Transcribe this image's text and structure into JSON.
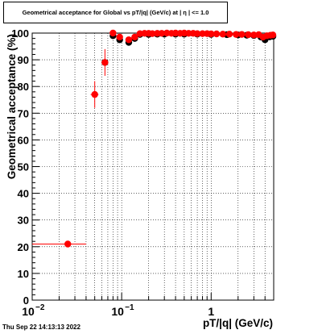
{
  "chart_data": {
    "type": "scatter",
    "title": "Geometrical acceptance for Global vs pT/|q| (GeV/c) at |  η  | <= 1.0",
    "xlabel": "pT/|q| (GeV/c)",
    "ylabel": "Geometrical acceptance (%)",
    "x_scale": "log",
    "xlim": [
      0.01,
      5.0
    ],
    "ylim": [
      0,
      100
    ],
    "grid": true,
    "x_tick_labels": [
      {
        "value": 0.01,
        "base": "10",
        "exp": "−2"
      },
      {
        "value": 0.1,
        "base": "10",
        "exp": "−1"
      },
      {
        "value": 1,
        "base": "1",
        "exp": ""
      }
    ],
    "y_tick_labels": [
      "0",
      "10",
      "20",
      "30",
      "40",
      "50",
      "60",
      "70",
      "80",
      "90",
      "100"
    ],
    "series": [
      {
        "color": "#000000",
        "points": [
          {
            "x": 0.065,
            "y": 89
          },
          {
            "x": 0.08,
            "y": 99
          },
          {
            "x": 0.095,
            "y": 97.5
          },
          {
            "x": 0.12,
            "y": 96.5
          },
          {
            "x": 0.14,
            "y": 98
          },
          {
            "x": 0.16,
            "y": 99.5
          },
          {
            "x": 0.2,
            "y": 99.5
          },
          {
            "x": 0.25,
            "y": 99.6
          },
          {
            "x": 0.3,
            "y": 99.6
          },
          {
            "x": 0.4,
            "y": 99.6
          },
          {
            "x": 0.5,
            "y": 99.6
          },
          {
            "x": 0.7,
            "y": 99.6
          },
          {
            "x": 1.0,
            "y": 99.5
          },
          {
            "x": 1.5,
            "y": 99.4
          },
          {
            "x": 2.0,
            "y": 99.3
          },
          {
            "x": 2.5,
            "y": 99.2
          },
          {
            "x": 3.0,
            "y": 99.1
          },
          {
            "x": 3.6,
            "y": 98.5
          },
          {
            "x": 4.0,
            "y": 97.5
          },
          {
            "x": 4.5,
            "y": 98.6
          },
          {
            "x": 4.9,
            "y": 98.8
          }
        ]
      },
      {
        "color": "#ff0000",
        "points": [
          {
            "x": 0.025,
            "y": 21,
            "xlo": 0.01,
            "xhi": 0.04,
            "err": 0.7
          },
          {
            "x": 0.05,
            "y": 77,
            "xlo": 0.045,
            "xhi": 0.055,
            "err": 5
          },
          {
            "x": 0.065,
            "y": 89,
            "xlo": 0.06,
            "xhi": 0.07,
            "err": 5
          },
          {
            "x": 0.08,
            "y": 100,
            "xlo": 0.075,
            "xhi": 0.085,
            "err": 0.5
          },
          {
            "x": 0.095,
            "y": 98.5,
            "xlo": 0.09,
            "xhi": 0.1,
            "err": 1
          },
          {
            "x": 0.12,
            "y": 97.5,
            "xlo": 0.11,
            "xhi": 0.13,
            "err": 1
          },
          {
            "x": 0.14,
            "y": 98.5,
            "xlo": 0.13,
            "xhi": 0.15,
            "err": 0.6
          },
          {
            "x": 0.16,
            "y": 99.8,
            "xlo": 0.15,
            "xhi": 0.17,
            "err": 0.3
          },
          {
            "x": 0.18,
            "y": 99.9,
            "xlo": 0.17,
            "xhi": 0.19,
            "err": 0.2
          },
          {
            "x": 0.2,
            "y": 99.9,
            "xlo": 0.19,
            "xhi": 0.21,
            "err": 0.2
          },
          {
            "x": 0.22,
            "y": 99.8,
            "xlo": 0.21,
            "xhi": 0.23,
            "err": 0.2
          },
          {
            "x": 0.25,
            "y": 99.9,
            "xlo": 0.23,
            "xhi": 0.27,
            "err": 0.2
          },
          {
            "x": 0.28,
            "y": 99.9,
            "xlo": 0.27,
            "xhi": 0.3,
            "err": 0.2
          },
          {
            "x": 0.32,
            "y": 100,
            "xlo": 0.3,
            "xhi": 0.34,
            "err": 0.2
          },
          {
            "x": 0.36,
            "y": 99.9,
            "xlo": 0.34,
            "xhi": 0.38,
            "err": 0.2
          },
          {
            "x": 0.4,
            "y": 100,
            "xlo": 0.38,
            "xhi": 0.42,
            "err": 0.2
          },
          {
            "x": 0.45,
            "y": 99.9,
            "xlo": 0.42,
            "xhi": 0.48,
            "err": 0.2
          },
          {
            "x": 0.5,
            "y": 100,
            "xlo": 0.48,
            "xhi": 0.52,
            "err": 0.2
          },
          {
            "x": 0.56,
            "y": 99.9,
            "xlo": 0.52,
            "xhi": 0.6,
            "err": 0.2
          },
          {
            "x": 0.63,
            "y": 99.9,
            "xlo": 0.6,
            "xhi": 0.66,
            "err": 0.2
          },
          {
            "x": 0.7,
            "y": 99.8,
            "xlo": 0.66,
            "xhi": 0.74,
            "err": 0.2
          },
          {
            "x": 0.8,
            "y": 99.8,
            "xlo": 0.74,
            "xhi": 0.86,
            "err": 0.2
          },
          {
            "x": 0.9,
            "y": 99.8,
            "xlo": 0.86,
            "xhi": 0.95,
            "err": 0.2
          },
          {
            "x": 1.0,
            "y": 99.7,
            "xlo": 0.95,
            "xhi": 1.05,
            "err": 0.2
          },
          {
            "x": 1.15,
            "y": 99.7,
            "xlo": 1.05,
            "xhi": 1.25,
            "err": 0.2
          },
          {
            "x": 1.35,
            "y": 99.6,
            "xlo": 1.25,
            "xhi": 1.45,
            "err": 0.2
          },
          {
            "x": 1.6,
            "y": 99.6,
            "xlo": 1.45,
            "xhi": 1.75,
            "err": 0.2
          },
          {
            "x": 1.9,
            "y": 99.5,
            "xlo": 1.75,
            "xhi": 2.05,
            "err": 0.3
          },
          {
            "x": 2.2,
            "y": 99.5,
            "xlo": 2.05,
            "xhi": 2.35,
            "err": 0.3
          },
          {
            "x": 2.6,
            "y": 99.4,
            "xlo": 2.35,
            "xhi": 2.8,
            "err": 0.3
          },
          {
            "x": 3.0,
            "y": 99.3,
            "xlo": 2.8,
            "xhi": 3.2,
            "err": 0.3
          },
          {
            "x": 3.4,
            "y": 99.4,
            "xlo": 3.2,
            "xhi": 3.6,
            "err": 0.3
          },
          {
            "x": 3.8,
            "y": 98.5,
            "xlo": 3.6,
            "xhi": 4.0,
            "err": 0.5
          },
          {
            "x": 4.2,
            "y": 99.0,
            "xlo": 4.0,
            "xhi": 4.4,
            "err": 0.4
          },
          {
            "x": 4.6,
            "y": 99.2,
            "xlo": 4.4,
            "xhi": 4.8,
            "err": 0.4
          },
          {
            "x": 4.9,
            "y": 99.3,
            "xlo": 4.8,
            "xhi": 5.0,
            "err": 0.4
          }
        ]
      }
    ]
  },
  "timestamp": "Thu Sep 22 14:13:13 2022"
}
